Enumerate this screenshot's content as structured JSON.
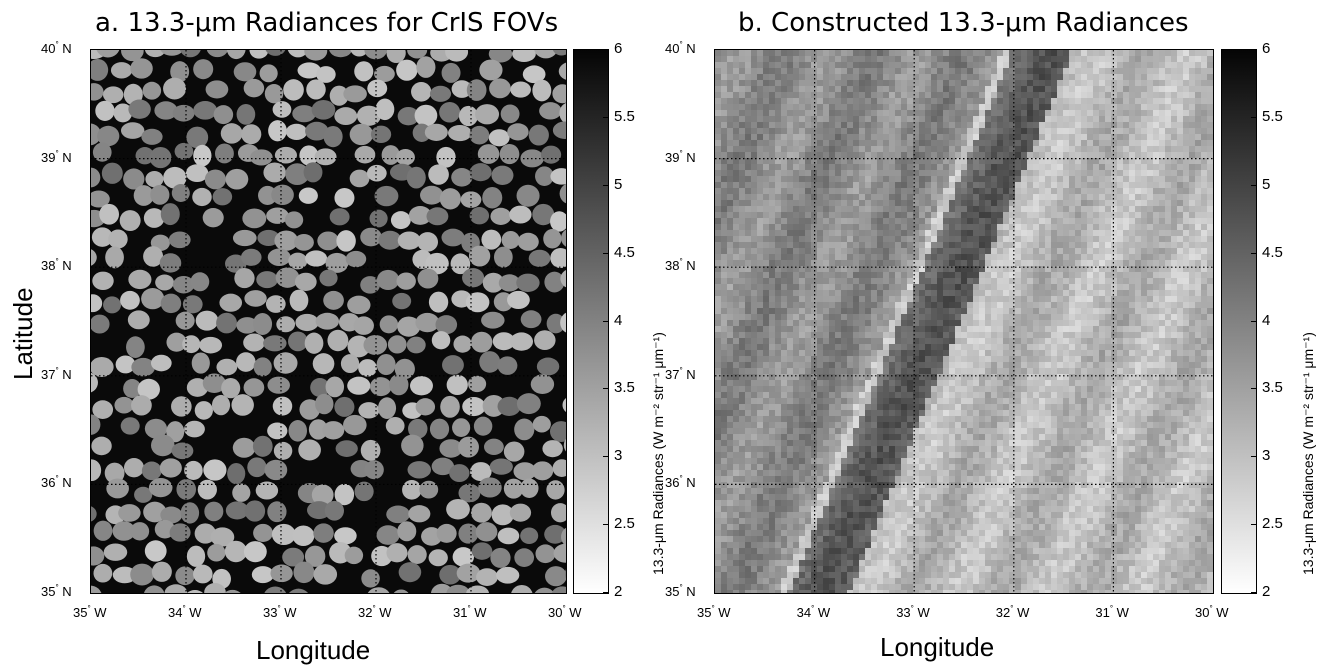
{
  "chart_data": [
    {
      "type": "heatmap",
      "title": "a. 13.3-μm Radiances for CrIS FOVs",
      "xlabel": "Longitude",
      "ylabel": "Latitude",
      "x_ticks": [
        "35° W",
        "34° W",
        "33° W",
        "32° W",
        "31° W",
        "30° W"
      ],
      "y_ticks": [
        "40° N",
        "39° N",
        "38° N",
        "37° N",
        "36° N",
        "35° N"
      ],
      "xlim": [
        -35,
        -30
      ],
      "ylim": [
        35,
        40
      ],
      "grid": true,
      "colorbar": {
        "label": "13.3-μm Radiances (W m⁻² str⁻¹ μm⁻¹)",
        "ticks": [
          "6",
          "5.5",
          "5",
          "4.5",
          "4",
          "3.5",
          "3",
          "2.5",
          "2"
        ],
        "range": [
          2,
          6
        ],
        "colormap": "gray (white=2, black=6)"
      }
    },
    {
      "type": "heatmap",
      "title": "b. Constructed 13.3-μm Radiances",
      "xlabel": "Longitude",
      "ylabel": "",
      "x_ticks": [
        "35° W",
        "34° W",
        "33° W",
        "32° W",
        "31° W",
        "30° W"
      ],
      "y_ticks": [
        "40° N",
        "39° N",
        "38° N",
        "37° N",
        "36° N",
        "35° N"
      ],
      "xlim": [
        -35,
        -30
      ],
      "ylim": [
        35,
        40
      ],
      "grid": true,
      "colorbar": {
        "label": "13.3-μm Radiances (W m⁻² str⁻¹ μm⁻¹)",
        "ticks": [
          "6",
          "5.5",
          "5",
          "4.5",
          "4",
          "3.5",
          "3",
          "2.5",
          "2"
        ],
        "range": [
          2,
          6
        ],
        "colormap": "gray (white=2, black=6)"
      }
    }
  ],
  "colors": {
    "background": "#ffffff",
    "fov_background": "#0a0a0a",
    "grid": "#000000"
  }
}
